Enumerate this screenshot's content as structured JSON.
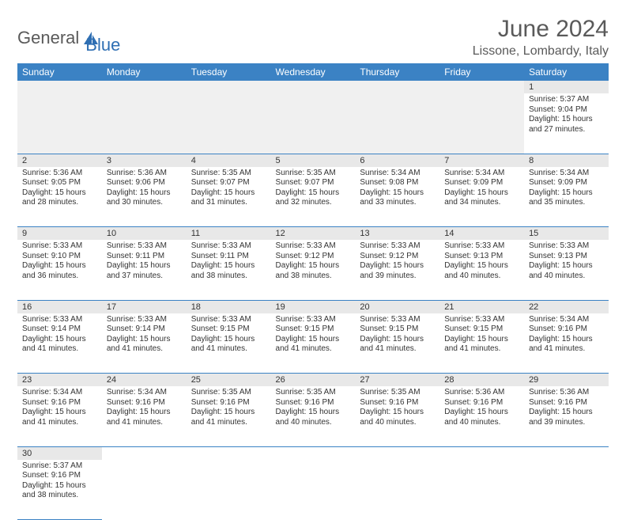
{
  "logo": {
    "text1": "General",
    "text2": "Blue",
    "sail_color": "#2f6fb3",
    "text1_color": "#5a5a5a"
  },
  "title": "June 2024",
  "location": "Lissone, Lombardy, Italy",
  "header_bg": "#3b82c4",
  "daynum_bg": "#e8e8e8",
  "border_color": "#3b82c4",
  "weekdays": [
    "Sunday",
    "Monday",
    "Tuesday",
    "Wednesday",
    "Thursday",
    "Friday",
    "Saturday"
  ],
  "weeks": [
    [
      null,
      null,
      null,
      null,
      null,
      null,
      {
        "n": "1",
        "sr": "Sunrise: 5:37 AM",
        "ss": "Sunset: 9:04 PM",
        "dl": "Daylight: 15 hours and 27 minutes."
      }
    ],
    [
      {
        "n": "2",
        "sr": "Sunrise: 5:36 AM",
        "ss": "Sunset: 9:05 PM",
        "dl": "Daylight: 15 hours and 28 minutes."
      },
      {
        "n": "3",
        "sr": "Sunrise: 5:36 AM",
        "ss": "Sunset: 9:06 PM",
        "dl": "Daylight: 15 hours and 30 minutes."
      },
      {
        "n": "4",
        "sr": "Sunrise: 5:35 AM",
        "ss": "Sunset: 9:07 PM",
        "dl": "Daylight: 15 hours and 31 minutes."
      },
      {
        "n": "5",
        "sr": "Sunrise: 5:35 AM",
        "ss": "Sunset: 9:07 PM",
        "dl": "Daylight: 15 hours and 32 minutes."
      },
      {
        "n": "6",
        "sr": "Sunrise: 5:34 AM",
        "ss": "Sunset: 9:08 PM",
        "dl": "Daylight: 15 hours and 33 minutes."
      },
      {
        "n": "7",
        "sr": "Sunrise: 5:34 AM",
        "ss": "Sunset: 9:09 PM",
        "dl": "Daylight: 15 hours and 34 minutes."
      },
      {
        "n": "8",
        "sr": "Sunrise: 5:34 AM",
        "ss": "Sunset: 9:09 PM",
        "dl": "Daylight: 15 hours and 35 minutes."
      }
    ],
    [
      {
        "n": "9",
        "sr": "Sunrise: 5:33 AM",
        "ss": "Sunset: 9:10 PM",
        "dl": "Daylight: 15 hours and 36 minutes."
      },
      {
        "n": "10",
        "sr": "Sunrise: 5:33 AM",
        "ss": "Sunset: 9:11 PM",
        "dl": "Daylight: 15 hours and 37 minutes."
      },
      {
        "n": "11",
        "sr": "Sunrise: 5:33 AM",
        "ss": "Sunset: 9:11 PM",
        "dl": "Daylight: 15 hours and 38 minutes."
      },
      {
        "n": "12",
        "sr": "Sunrise: 5:33 AM",
        "ss": "Sunset: 9:12 PM",
        "dl": "Daylight: 15 hours and 38 minutes."
      },
      {
        "n": "13",
        "sr": "Sunrise: 5:33 AM",
        "ss": "Sunset: 9:12 PM",
        "dl": "Daylight: 15 hours and 39 minutes."
      },
      {
        "n": "14",
        "sr": "Sunrise: 5:33 AM",
        "ss": "Sunset: 9:13 PM",
        "dl": "Daylight: 15 hours and 40 minutes."
      },
      {
        "n": "15",
        "sr": "Sunrise: 5:33 AM",
        "ss": "Sunset: 9:13 PM",
        "dl": "Daylight: 15 hours and 40 minutes."
      }
    ],
    [
      {
        "n": "16",
        "sr": "Sunrise: 5:33 AM",
        "ss": "Sunset: 9:14 PM",
        "dl": "Daylight: 15 hours and 41 minutes."
      },
      {
        "n": "17",
        "sr": "Sunrise: 5:33 AM",
        "ss": "Sunset: 9:14 PM",
        "dl": "Daylight: 15 hours and 41 minutes."
      },
      {
        "n": "18",
        "sr": "Sunrise: 5:33 AM",
        "ss": "Sunset: 9:15 PM",
        "dl": "Daylight: 15 hours and 41 minutes."
      },
      {
        "n": "19",
        "sr": "Sunrise: 5:33 AM",
        "ss": "Sunset: 9:15 PM",
        "dl": "Daylight: 15 hours and 41 minutes."
      },
      {
        "n": "20",
        "sr": "Sunrise: 5:33 AM",
        "ss": "Sunset: 9:15 PM",
        "dl": "Daylight: 15 hours and 41 minutes."
      },
      {
        "n": "21",
        "sr": "Sunrise: 5:33 AM",
        "ss": "Sunset: 9:15 PM",
        "dl": "Daylight: 15 hours and 41 minutes."
      },
      {
        "n": "22",
        "sr": "Sunrise: 5:34 AM",
        "ss": "Sunset: 9:16 PM",
        "dl": "Daylight: 15 hours and 41 minutes."
      }
    ],
    [
      {
        "n": "23",
        "sr": "Sunrise: 5:34 AM",
        "ss": "Sunset: 9:16 PM",
        "dl": "Daylight: 15 hours and 41 minutes."
      },
      {
        "n": "24",
        "sr": "Sunrise: 5:34 AM",
        "ss": "Sunset: 9:16 PM",
        "dl": "Daylight: 15 hours and 41 minutes."
      },
      {
        "n": "25",
        "sr": "Sunrise: 5:35 AM",
        "ss": "Sunset: 9:16 PM",
        "dl": "Daylight: 15 hours and 41 minutes."
      },
      {
        "n": "26",
        "sr": "Sunrise: 5:35 AM",
        "ss": "Sunset: 9:16 PM",
        "dl": "Daylight: 15 hours and 40 minutes."
      },
      {
        "n": "27",
        "sr": "Sunrise: 5:35 AM",
        "ss": "Sunset: 9:16 PM",
        "dl": "Daylight: 15 hours and 40 minutes."
      },
      {
        "n": "28",
        "sr": "Sunrise: 5:36 AM",
        "ss": "Sunset: 9:16 PM",
        "dl": "Daylight: 15 hours and 40 minutes."
      },
      {
        "n": "29",
        "sr": "Sunrise: 5:36 AM",
        "ss": "Sunset: 9:16 PM",
        "dl": "Daylight: 15 hours and 39 minutes."
      }
    ],
    [
      {
        "n": "30",
        "sr": "Sunrise: 5:37 AM",
        "ss": "Sunset: 9:16 PM",
        "dl": "Daylight: 15 hours and 38 minutes."
      },
      null,
      null,
      null,
      null,
      null,
      null
    ]
  ]
}
